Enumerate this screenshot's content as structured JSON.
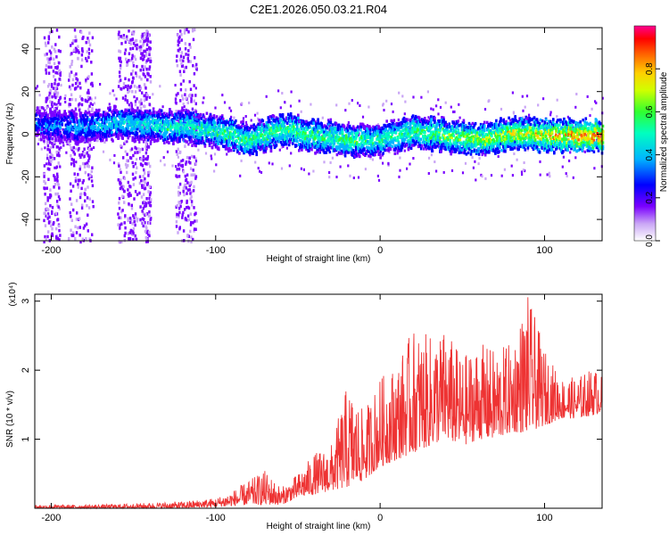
{
  "title": "C2E1.2026.050.03.21.R04",
  "chart_data": [
    {
      "type": "heatmap",
      "xlabel": "Height of straight line (km)",
      "ylabel": "Frequency (Hz)",
      "xlim": [
        -210,
        135
      ],
      "ylim": [
        -50,
        50
      ],
      "x_ticks": [
        -200,
        -100,
        0,
        100
      ],
      "y_ticks": [
        -40,
        -20,
        0,
        20,
        40
      ],
      "colorbar": {
        "label": "Normalized spectral amplitude",
        "range": [
          0,
          1
        ],
        "ticks": [
          0.0,
          0.2,
          0.4,
          0.6,
          0.8
        ],
        "colormap": [
          "#ffffff",
          "#b58cf0",
          "#7a00ff",
          "#0000ff",
          "#00c8ff",
          "#00ff80",
          "#ffff00",
          "#ff8000",
          "#ff0000",
          "#ff00a0"
        ]
      },
      "ridge": {
        "description_points_x": [
          -205,
          -180,
          -160,
          -140,
          -120,
          -100,
          -80,
          -60,
          -40,
          -20,
          0,
          20,
          40,
          60,
          80,
          100,
          120,
          135
        ],
        "frequency": [
          5,
          4,
          6,
          5,
          4,
          2,
          -2,
          3,
          0,
          -2,
          -2,
          2,
          0,
          -2,
          1,
          0,
          0,
          0
        ],
        "amplitude": [
          0.3,
          0.35,
          0.4,
          0.45,
          0.5,
          0.5,
          0.55,
          0.55,
          0.55,
          0.55,
          0.5,
          0.55,
          0.6,
          0.65,
          0.7,
          0.75,
          0.85,
          0.9
        ]
      }
    },
    {
      "type": "line",
      "xlabel": "Height of straight line (km)",
      "ylabel": "SNR (10 * v/v)",
      "y_multiplier": "(x10⁴)",
      "xlim": [
        -210,
        135
      ],
      "ylim": [
        0,
        3.1
      ],
      "x_ticks": [
        -200,
        -100,
        0,
        100
      ],
      "y_ticks": [
        1,
        2,
        3
      ],
      "color": "#ee3333",
      "series": [
        {
          "x": [
            -210,
            -180,
            -160,
            -140,
            -120,
            -100,
            -90,
            -80,
            -70,
            -60,
            -50,
            -40,
            -30,
            -20,
            -10,
            0,
            10,
            20,
            30,
            40,
            50,
            60,
            70,
            80,
            90,
            100,
            110,
            120,
            130,
            135
          ],
          "envelope_low": [
            0,
            0,
            0,
            0,
            0,
            0.02,
            0.03,
            0.05,
            0.05,
            0.05,
            0.15,
            0.2,
            0.25,
            0.3,
            0.4,
            0.6,
            0.7,
            0.8,
            0.9,
            1.0,
            0.9,
            1.0,
            1.0,
            1.1,
            1.1,
            1.2,
            1.3,
            1.3,
            1.35,
            1.4
          ],
          "envelope_high": [
            0.05,
            0.05,
            0.06,
            0.08,
            0.1,
            0.15,
            0.25,
            0.4,
            0.55,
            0.3,
            0.5,
            0.8,
            0.9,
            1.8,
            1.4,
            1.9,
            2.1,
            2.6,
            2.5,
            2.6,
            2.2,
            2.4,
            2.3,
            2.4,
            3.1,
            2.3,
            1.9,
            1.9,
            2.05,
            1.9
          ]
        }
      ]
    }
  ]
}
